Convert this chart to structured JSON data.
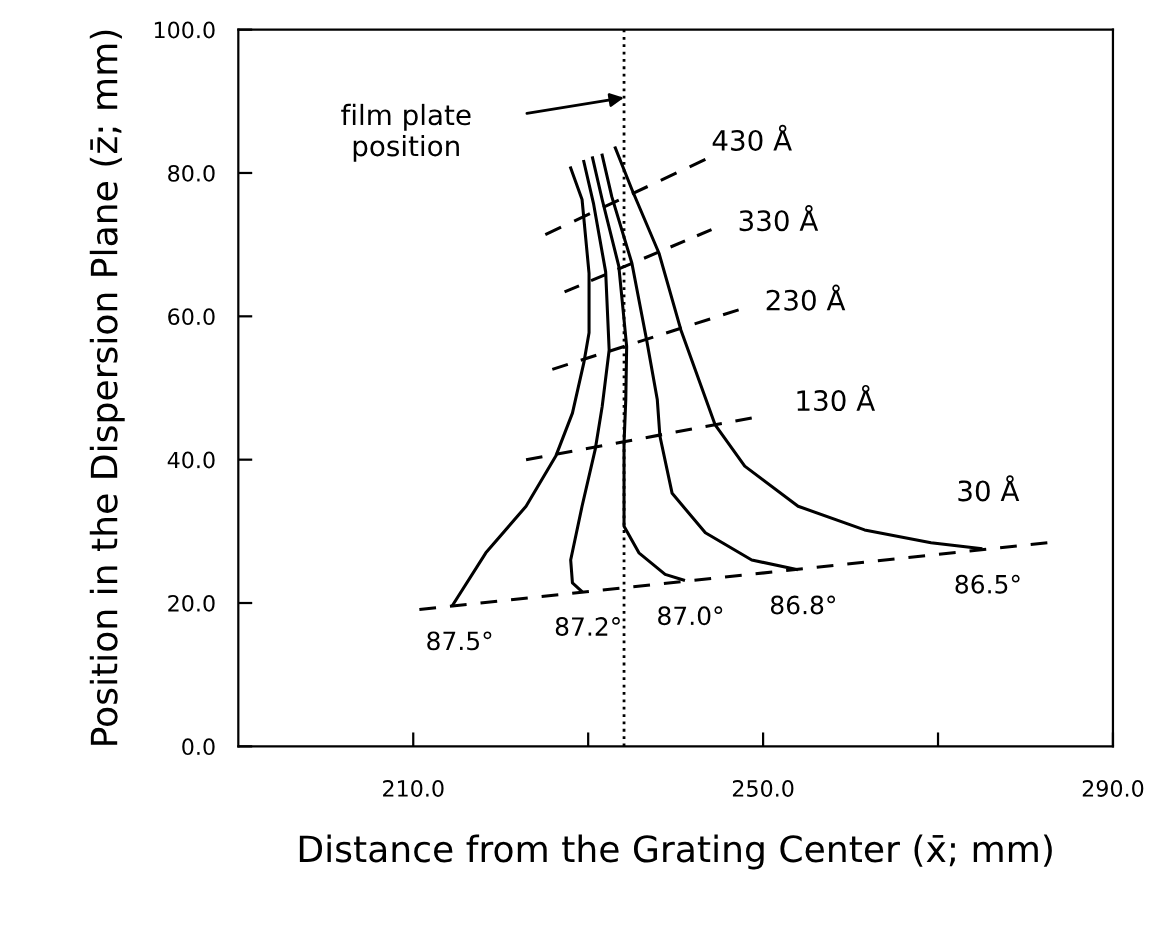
{
  "chart_data": {
    "type": "line",
    "xlabel": "Distance from the Grating Center (x̄; mm)",
    "ylabel": "Position in the Dispersion Plane (z̄; mm)",
    "xlim": [
      190,
      290
    ],
    "ylim": [
      0,
      100
    ],
    "xticks": [
      {
        "value": 210,
        "label": "210.0"
      },
      {
        "value": 230,
        "label": null
      },
      {
        "value": 250,
        "label": "250.0"
      },
      {
        "value": 270,
        "label": null
      },
      {
        "value": 290,
        "label": "290.0"
      }
    ],
    "yticks": [
      {
        "value": 0,
        "label": "0.0"
      },
      {
        "value": 20,
        "label": "20.0"
      },
      {
        "value": 40,
        "label": "40.0"
      },
      {
        "value": 60,
        "label": "60.0"
      },
      {
        "value": 80,
        "label": "80.0"
      },
      {
        "value": 100,
        "label": "100.0"
      }
    ],
    "grid": false,
    "legend": false,
    "marker": "none",
    "series": [
      {
        "color": "#000000",
        "line_style": "solid",
        "x": [
          228.0,
          229.3,
          230.1,
          230.1,
          229.5,
          228.2,
          226.3,
          222.9,
          218.3,
          214.5
        ],
        "values": [
          80.7,
          76.3,
          66.0,
          57.7,
          53.5,
          46.5,
          40.5,
          33.5,
          27.0,
          19.7
        ]
      },
      {
        "color": "#000000",
        "line_style": "solid",
        "x": [
          229.5,
          230.6,
          232.0,
          232.4,
          231.6,
          230.8,
          229.3,
          228.0,
          228.2,
          229.2
        ],
        "values": [
          81.6,
          75.8,
          66.2,
          55.3,
          47.4,
          41.4,
          33.5,
          26.0,
          22.8,
          21.7
        ]
      },
      {
        "color": "#000000",
        "line_style": "solid",
        "x": [
          230.5,
          231.6,
          233.5,
          234.4,
          234.3,
          234.1,
          234.1,
          235.8,
          238.8,
          240.9
        ],
        "values": [
          82.1,
          76.3,
          67.0,
          55.8,
          48.4,
          42.3,
          30.7,
          27.0,
          24.0,
          23.2
        ]
      },
      {
        "color": "#000000",
        "line_style": "solid",
        "x": [
          231.6,
          232.7,
          235.0,
          236.7,
          237.9,
          238.2,
          239.6,
          243.4,
          248.7,
          253.8
        ],
        "values": [
          82.5,
          76.7,
          67.4,
          56.6,
          48.4,
          43.3,
          35.3,
          29.8,
          26.0,
          24.7
        ]
      },
      {
        "color": "#000000",
        "line_style": "solid",
        "x": [
          233.1,
          235.0,
          238.1,
          240.6,
          244.5,
          247.9,
          254.0,
          261.6,
          269.2,
          274.9
        ],
        "values": [
          83.5,
          77.7,
          68.8,
          58.1,
          44.9,
          39.1,
          33.5,
          30.2,
          28.4,
          27.6
        ]
      },
      {
        "color": "#000000",
        "line_style": "dashed",
        "x": [
          225.1,
          243.4
        ],
        "values": [
          71.4,
          81.9
        ]
      },
      {
        "color": "#000000",
        "line_style": "dashed",
        "x": [
          227.3,
          244.1
        ],
        "values": [
          63.4,
          72.1
        ]
      },
      {
        "color": "#000000",
        "line_style": "dashed",
        "x": [
          225.9,
          247.2
        ],
        "values": [
          52.6,
          60.9
        ]
      },
      {
        "color": "#000000",
        "line_style": "dashed",
        "x": [
          222.9,
          248.7
        ],
        "values": [
          40.0,
          45.8
        ]
      },
      {
        "color": "#000000",
        "line_style": "dashed",
        "x": [
          210.7,
          282.5
        ],
        "values": [
          19.1,
          28.4
        ]
      }
    ],
    "ref_lines": [
      {
        "axis": "x",
        "value": 234.1,
        "label": "film plate\nposition",
        "line_style": "dotted",
        "color": "#000000"
      }
    ],
    "annotations": [
      "430 Å",
      "330 Å",
      "230 Å",
      "130 Å",
      "30 Å",
      "87.5°",
      "87.2°",
      "87.0°",
      "86.8°",
      "86.5°"
    ]
  }
}
